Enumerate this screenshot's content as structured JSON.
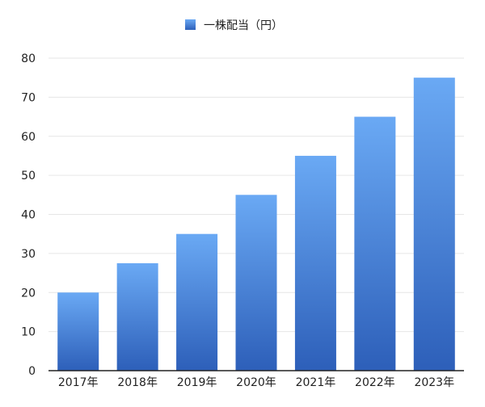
{
  "chart_data": {
    "type": "bar",
    "categories": [
      "2017年",
      "2018年",
      "2019年",
      "2020年",
      "2021年",
      "2022年",
      "2023年"
    ],
    "series": [
      {
        "name": "一株配当（円）",
        "values": [
          20,
          27.5,
          35,
          45,
          55,
          65,
          75
        ]
      }
    ],
    "ylim": [
      0,
      80
    ],
    "yticks": [
      0,
      10,
      20,
      30,
      40,
      50,
      60,
      70,
      80
    ],
    "grid": true,
    "legend": "top-center",
    "colors": {
      "bar_top": "#6aa9f4",
      "bar_bottom": "#2d5fb9",
      "grid": "#e6e6e6",
      "axis": "#222222"
    }
  }
}
